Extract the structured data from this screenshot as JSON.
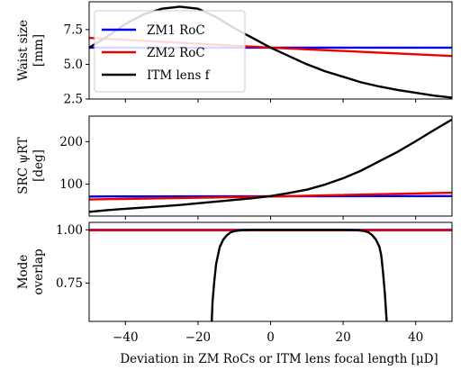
{
  "chart_data": {
    "type": "line",
    "xlabel": "Deviation in ZM RoCs or ITM lens focal length [μD]",
    "xlim": [
      -50,
      50
    ],
    "xticks": [
      "−40",
      "−20",
      "0",
      "20",
      "40"
    ],
    "xtick_values": [
      -40,
      -20,
      0,
      20,
      40
    ],
    "grid": "off",
    "legend": {
      "placement": "upper-left of top panel",
      "entries": [
        {
          "name": "ZM1 RoC",
          "color": "#0000ee"
        },
        {
          "name": "ZM2 RoC",
          "color": "#ee0000"
        },
        {
          "name": "ITM lens f",
          "color": "#000000"
        }
      ]
    },
    "panels": [
      {
        "id": "waist",
        "ylabel_lines": [
          "Waist size",
          "[mm]"
        ],
        "ylim": [
          2.5,
          9.5
        ],
        "yticks": [
          "2.5",
          "5.0",
          "7.5"
        ],
        "ytick_values": [
          2.5,
          5.0,
          7.5
        ],
        "series": [
          {
            "name": "ZM1 RoC",
            "color": "#0000ee",
            "x": [
              -50,
              50
            ],
            "y": [
              6.2,
              6.2
            ]
          },
          {
            "name": "ZM2 RoC",
            "color": "#ee0000",
            "x": [
              -50,
              -25,
              0,
              25,
              50
            ],
            "y": [
              6.9,
              6.55,
              6.2,
              5.9,
              5.6
            ]
          },
          {
            "name": "ITM lens f",
            "color": "#000000",
            "x": [
              -50,
              -45,
              -40,
              -35,
              -30,
              -25,
              -20,
              -15,
              -10,
              -5,
              0,
              5,
              10,
              15,
              20,
              25,
              30,
              35,
              40,
              45,
              50
            ],
            "y": [
              6.2,
              7.0,
              7.9,
              8.6,
              9.0,
              9.15,
              9.0,
              8.4,
              7.6,
              6.9,
              6.2,
              5.6,
              5.0,
              4.5,
              4.1,
              3.7,
              3.4,
              3.15,
              2.95,
              2.75,
              2.6
            ]
          }
        ]
      },
      {
        "id": "src",
        "ylabel_lines": [
          "SRC ψRT",
          "[deg]"
        ],
        "ylim": [
          25,
          260
        ],
        "yticks": [
          "100",
          "200"
        ],
        "ytick_values": [
          100,
          200
        ],
        "series": [
          {
            "name": "ZM1 RoC",
            "color": "#0000ee",
            "x": [
              -50,
              50
            ],
            "y": [
              71,
              72
            ]
          },
          {
            "name": "ZM2 RoC",
            "color": "#ee0000",
            "x": [
              -50,
              0,
              50
            ],
            "y": [
              64,
              71,
              80
            ]
          },
          {
            "name": "ITM lens f",
            "color": "#000000",
            "x": [
              -50,
              -45,
              -40,
              -35,
              -30,
              -25,
              -20,
              -15,
              -10,
              -5,
              0,
              5,
              10,
              15,
              20,
              25,
              30,
              35,
              40,
              45,
              50
            ],
            "y": [
              35,
              39,
              42,
              45,
              48,
              51,
              55,
              59,
              63,
              67,
              72,
              79,
              87,
              99,
              114,
              132,
              154,
              176,
              201,
              227,
              252
            ]
          }
        ]
      },
      {
        "id": "overlap",
        "ylabel_lines": [
          "Mode",
          "overlap"
        ],
        "ylim": [
          0.57,
          1.035
        ],
        "yticks": [
          "0.75",
          "1.00"
        ],
        "ytick_values": [
          0.75,
          1.0
        ],
        "series": [
          {
            "name": "ZM1 RoC",
            "color": "#0000ee",
            "x": [
              -50,
              50
            ],
            "y": [
              1.0,
              1.0
            ]
          },
          {
            "name": "ZM2 RoC",
            "color": "#ee0000",
            "x": [
              -50,
              50
            ],
            "y": [
              0.998,
              0.998
            ]
          },
          {
            "name": "ITM lens f",
            "color": "#000000",
            "x": [
              -16.2,
              -16,
              -15.5,
              -15,
              -14,
              -13,
              -12,
              -11,
              -10,
              -8,
              -5,
              0,
              10,
              20,
              24,
              26,
              27,
              28,
              29,
              30,
              30.5,
              31,
              31.5,
              32
            ],
            "y": [
              0.57,
              0.66,
              0.76,
              0.84,
              0.92,
              0.955,
              0.975,
              0.988,
              0.994,
              0.998,
              1.0,
              1.0,
              1.0,
              1.0,
              0.998,
              0.994,
              0.988,
              0.975,
              0.955,
              0.92,
              0.88,
              0.8,
              0.7,
              0.57
            ]
          }
        ]
      }
    ]
  }
}
